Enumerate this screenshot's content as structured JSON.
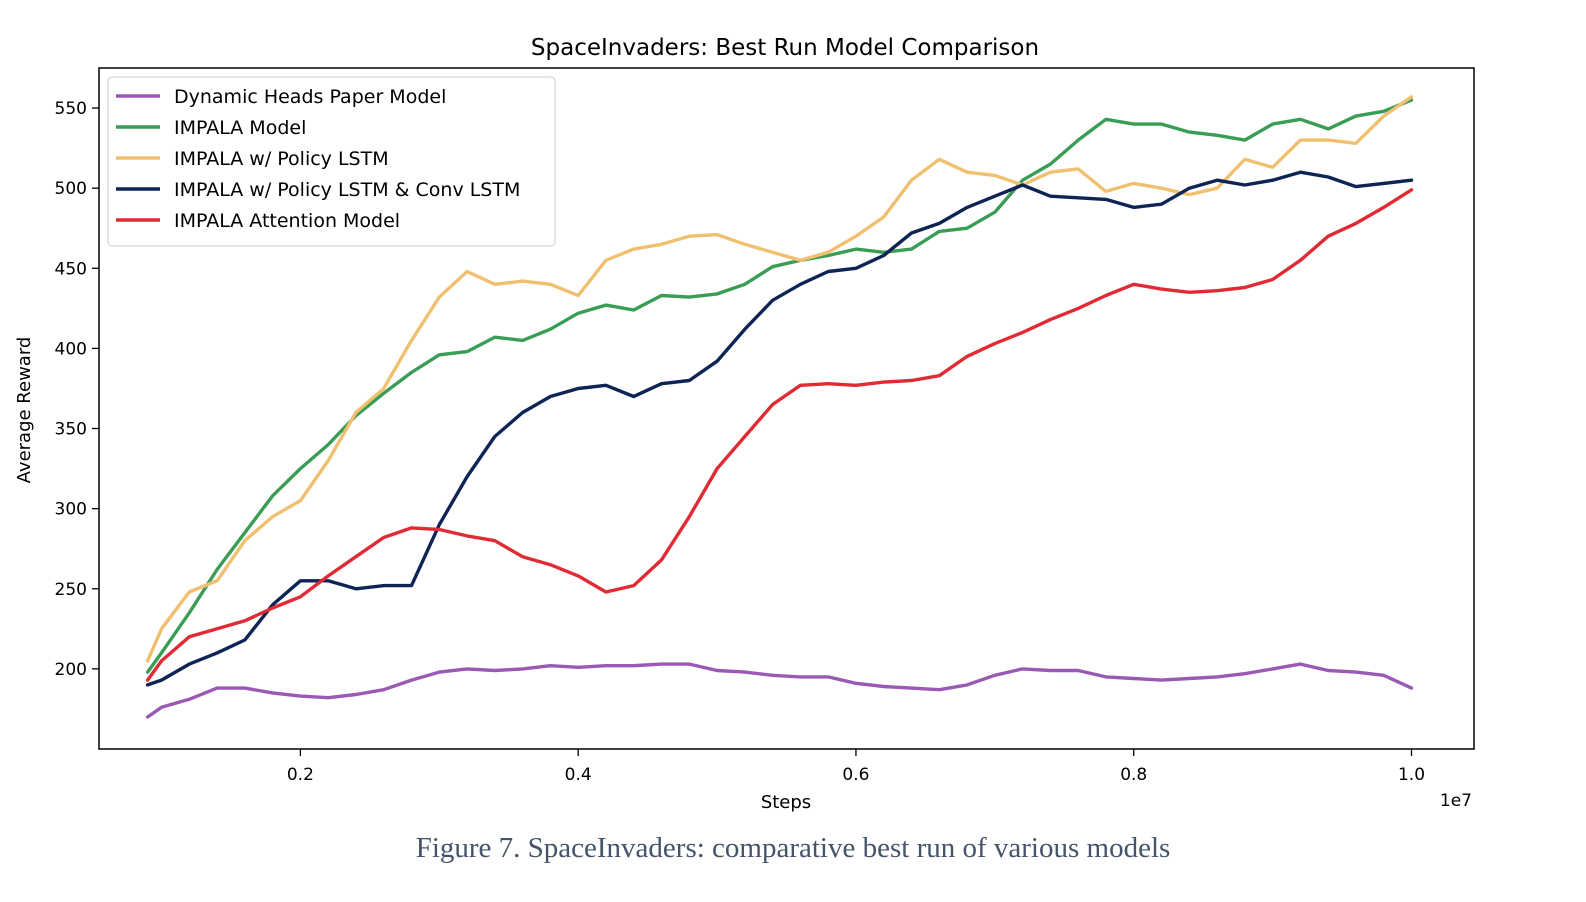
{
  "caption": "Figure 7. SpaceInvaders: comparative best run of various models",
  "chart_data": {
    "type": "line",
    "title": "SpaceInvaders: Best Run Model Comparison",
    "xlabel": "Steps",
    "ylabel": "Average Reward",
    "x_offset_label": "1e7",
    "xlim": [
      0.055,
      1.045
    ],
    "ylim": [
      150,
      575
    ],
    "xticks": [
      0.2,
      0.4,
      0.6,
      0.8,
      1.0
    ],
    "xtick_labels": [
      "0.2",
      "0.4",
      "0.6",
      "0.8",
      "1.0"
    ],
    "yticks": [
      200,
      250,
      300,
      350,
      400,
      450,
      500,
      550
    ],
    "ytick_labels": [
      "200",
      "250",
      "300",
      "350",
      "400",
      "450",
      "500",
      "550"
    ],
    "grid": false,
    "legend_position": "upper-left",
    "series": [
      {
        "name": "Dynamic Heads Paper Model",
        "color": "#9b59b6",
        "x": [
          0.09,
          0.1,
          0.12,
          0.14,
          0.16,
          0.18,
          0.2,
          0.22,
          0.24,
          0.26,
          0.28,
          0.3,
          0.32,
          0.34,
          0.36,
          0.38,
          0.4,
          0.42,
          0.44,
          0.46,
          0.48,
          0.5,
          0.52,
          0.54,
          0.56,
          0.58,
          0.6,
          0.62,
          0.64,
          0.66,
          0.68,
          0.7,
          0.72,
          0.74,
          0.76,
          0.78,
          0.8,
          0.82,
          0.84,
          0.86,
          0.88,
          0.9,
          0.92,
          0.94,
          0.96,
          0.98,
          1.0
        ],
        "y": [
          170,
          176,
          181,
          188,
          188,
          185,
          183,
          182,
          184,
          187,
          193,
          198,
          200,
          199,
          200,
          202,
          201,
          202,
          202,
          203,
          203,
          199,
          198,
          196,
          195,
          195,
          191,
          189,
          188,
          187,
          190,
          196,
          200,
          199,
          199,
          195,
          194,
          193,
          194,
          195,
          197,
          200,
          203,
          199,
          198,
          196,
          188
        ]
      },
      {
        "name": "IMPALA Model",
        "color": "#3a9d55",
        "x": [
          0.09,
          0.1,
          0.12,
          0.14,
          0.16,
          0.18,
          0.2,
          0.22,
          0.24,
          0.26,
          0.28,
          0.3,
          0.32,
          0.34,
          0.36,
          0.38,
          0.4,
          0.42,
          0.44,
          0.46,
          0.48,
          0.5,
          0.52,
          0.54,
          0.56,
          0.58,
          0.6,
          0.62,
          0.64,
          0.66,
          0.68,
          0.7,
          0.72,
          0.74,
          0.76,
          0.78,
          0.8,
          0.82,
          0.84,
          0.86,
          0.88,
          0.9,
          0.92,
          0.94,
          0.96,
          0.98,
          1.0
        ],
        "y": [
          198,
          210,
          235,
          262,
          285,
          308,
          325,
          340,
          358,
          372,
          385,
          396,
          398,
          407,
          405,
          412,
          422,
          427,
          424,
          433,
          432,
          434,
          440,
          451,
          455,
          458,
          462,
          460,
          462,
          473,
          475,
          485,
          505,
          515,
          530,
          543,
          540,
          540,
          535,
          533,
          530,
          540,
          543,
          537,
          545,
          548,
          555
        ]
      },
      {
        "name": "IMPALA w/ Policy LSTM",
        "color": "#f0c070",
        "x": [
          0.09,
          0.1,
          0.12,
          0.14,
          0.16,
          0.18,
          0.2,
          0.22,
          0.24,
          0.26,
          0.28,
          0.3,
          0.32,
          0.34,
          0.36,
          0.38,
          0.4,
          0.42,
          0.44,
          0.46,
          0.48,
          0.5,
          0.52,
          0.54,
          0.56,
          0.58,
          0.6,
          0.62,
          0.64,
          0.66,
          0.68,
          0.7,
          0.72,
          0.74,
          0.76,
          0.78,
          0.8,
          0.82,
          0.84,
          0.86,
          0.88,
          0.9,
          0.92,
          0.94,
          0.96,
          0.98,
          1.0
        ],
        "y": [
          205,
          225,
          248,
          255,
          280,
          295,
          305,
          330,
          360,
          375,
          405,
          432,
          448,
          440,
          442,
          440,
          433,
          455,
          462,
          465,
          470,
          471,
          465,
          460,
          455,
          460,
          470,
          482,
          505,
          518,
          510,
          508,
          502,
          510,
          512,
          498,
          503,
          500,
          496,
          500,
          518,
          513,
          530,
          530,
          528,
          545,
          557
        ]
      },
      {
        "name": "IMPALA w/ Policy LSTM & Conv LSTM",
        "color": "#0d2454",
        "x": [
          0.09,
          0.1,
          0.12,
          0.14,
          0.16,
          0.18,
          0.2,
          0.22,
          0.24,
          0.26,
          0.28,
          0.3,
          0.32,
          0.34,
          0.36,
          0.38,
          0.4,
          0.42,
          0.44,
          0.46,
          0.48,
          0.5,
          0.52,
          0.54,
          0.56,
          0.58,
          0.6,
          0.62,
          0.64,
          0.66,
          0.68,
          0.7,
          0.72,
          0.74,
          0.76,
          0.78,
          0.8,
          0.82,
          0.84,
          0.86,
          0.88,
          0.9,
          0.92,
          0.94,
          0.96,
          0.98,
          1.0
        ],
        "y": [
          190,
          193,
          203,
          210,
          218,
          240,
          255,
          255,
          250,
          252,
          252,
          290,
          320,
          345,
          360,
          370,
          375,
          377,
          370,
          378,
          380,
          392,
          412,
          430,
          440,
          448,
          450,
          458,
          472,
          478,
          488,
          495,
          502,
          495,
          494,
          493,
          488,
          490,
          500,
          505,
          502,
          505,
          510,
          507,
          501,
          503,
          505
        ]
      },
      {
        "name": "IMPALA Attention Model",
        "color": "#e02b35",
        "x": [
          0.09,
          0.1,
          0.12,
          0.14,
          0.16,
          0.18,
          0.2,
          0.22,
          0.24,
          0.26,
          0.28,
          0.3,
          0.32,
          0.34,
          0.36,
          0.38,
          0.4,
          0.42,
          0.44,
          0.46,
          0.48,
          0.5,
          0.52,
          0.54,
          0.56,
          0.58,
          0.6,
          0.62,
          0.64,
          0.66,
          0.68,
          0.7,
          0.72,
          0.74,
          0.76,
          0.78,
          0.8,
          0.82,
          0.84,
          0.86,
          0.88,
          0.9,
          0.92,
          0.94,
          0.96,
          0.98,
          1.0
        ],
        "y": [
          193,
          205,
          220,
          225,
          230,
          238,
          245,
          258,
          270,
          282,
          288,
          287,
          283,
          280,
          270,
          265,
          258,
          248,
          252,
          268,
          295,
          325,
          345,
          365,
          377,
          378,
          377,
          379,
          380,
          383,
          395,
          403,
          410,
          418,
          425,
          433,
          440,
          437,
          435,
          436,
          438,
          443,
          455,
          470,
          478,
          488,
          499
        ]
      }
    ]
  }
}
